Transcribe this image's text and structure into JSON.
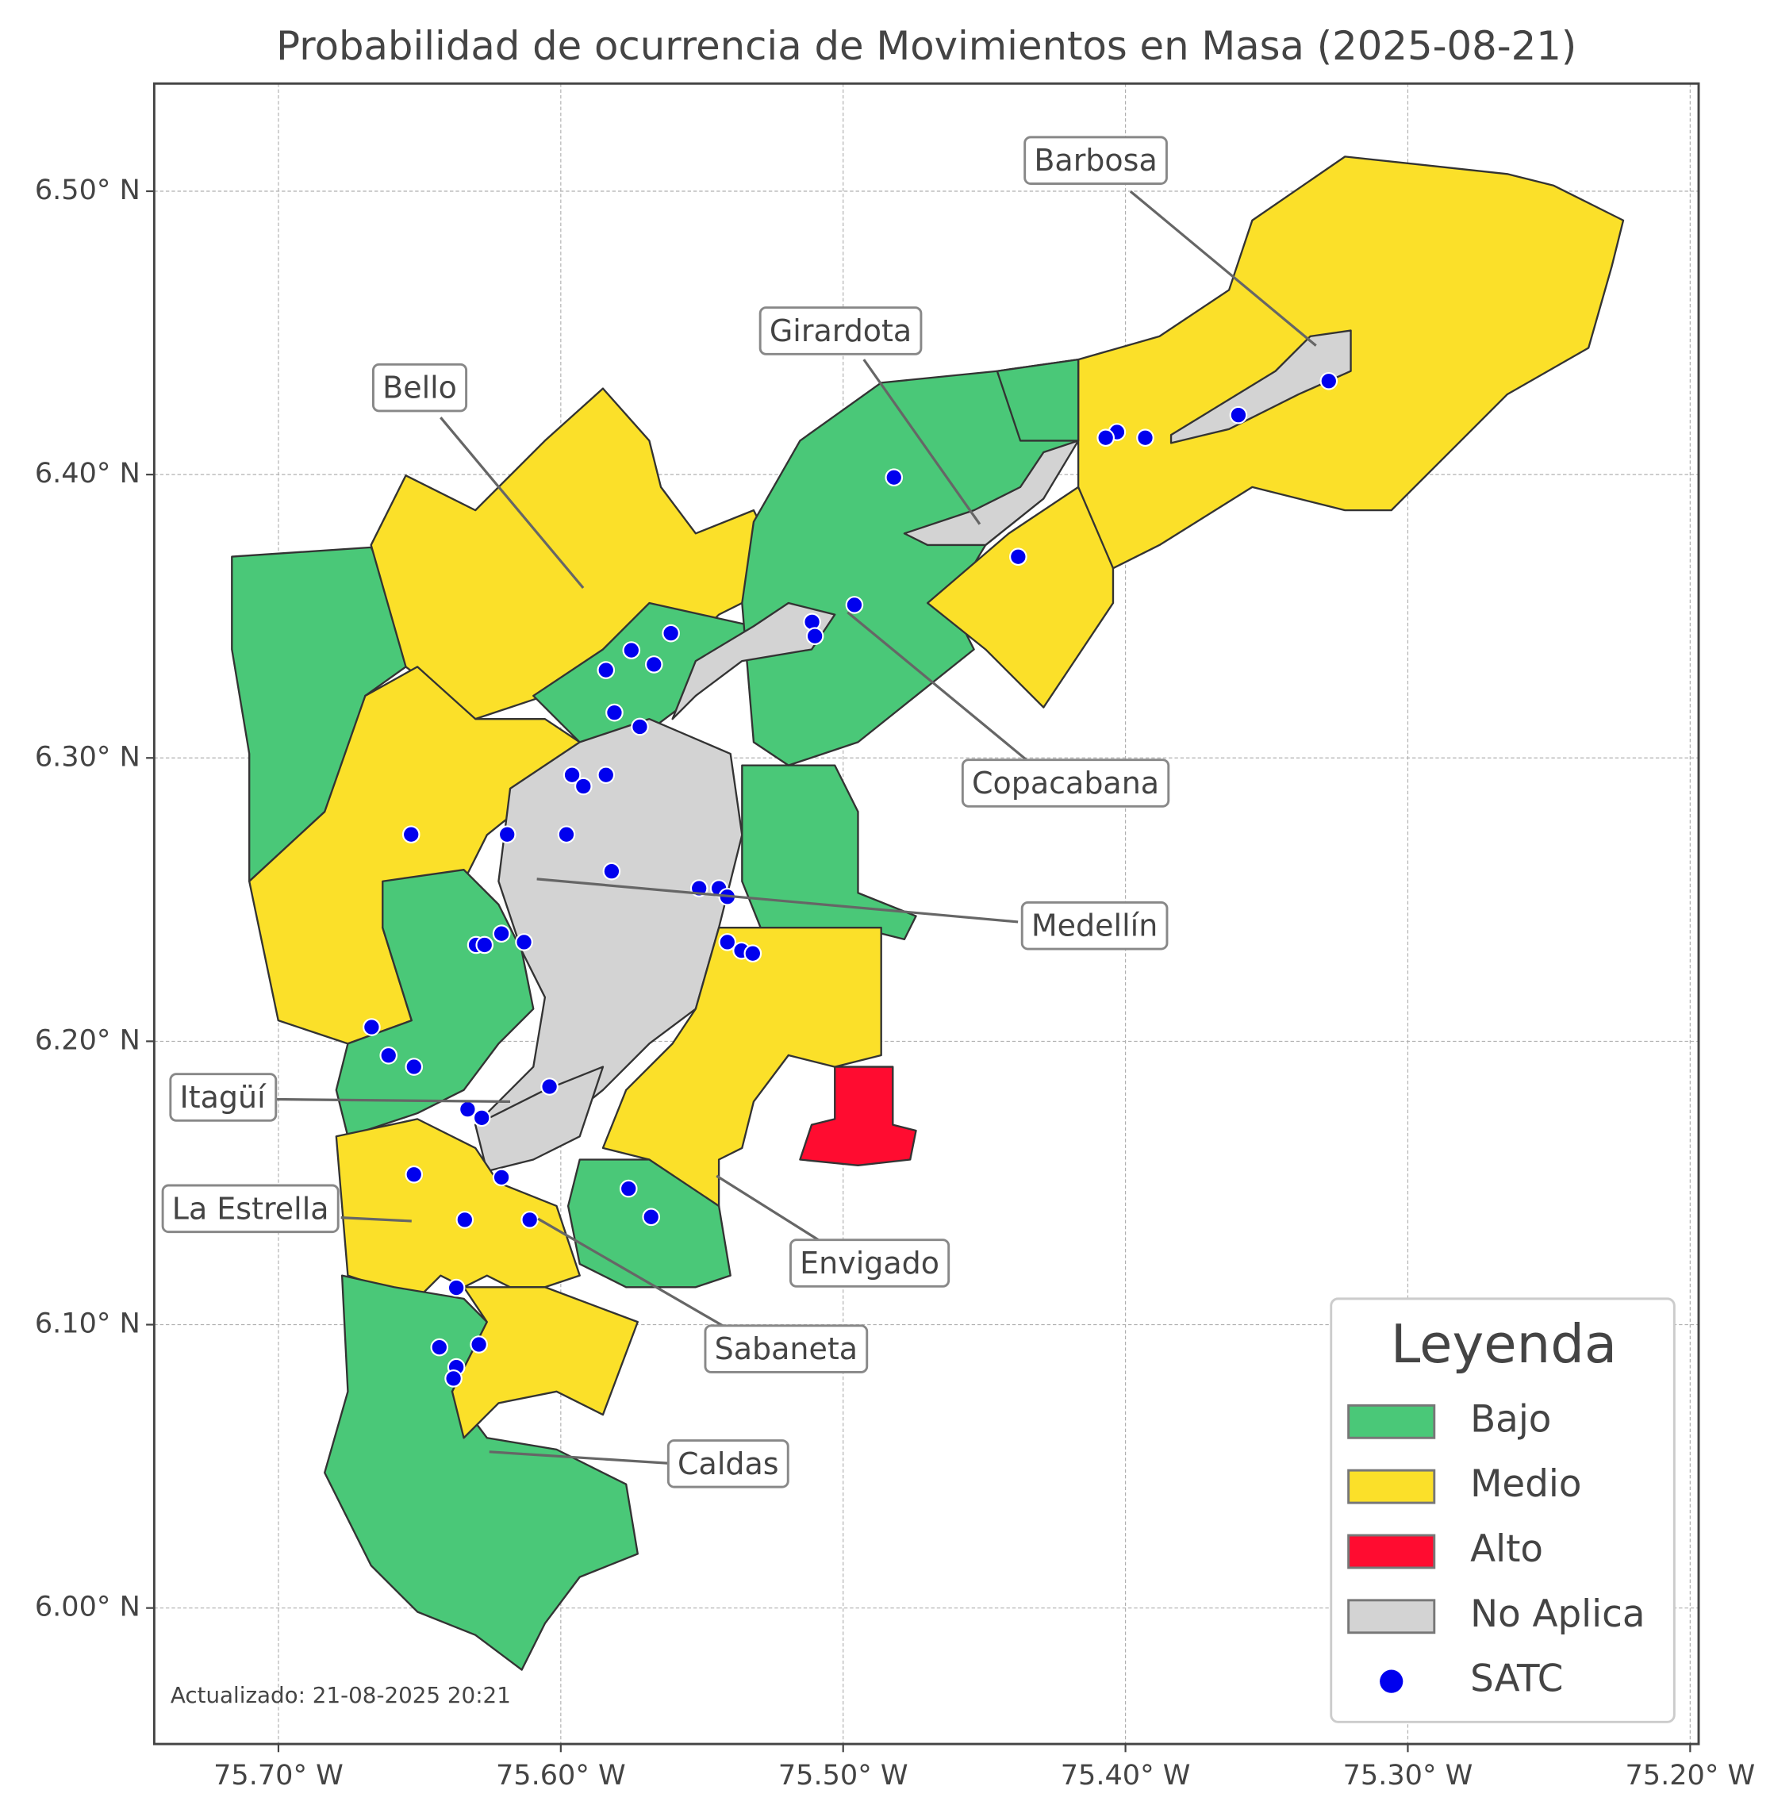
{
  "chart_data": {
    "type": "map",
    "title": "Probabilidad de ocurrencia de Movimientos en Masa (2025-08-21)",
    "xlim": [
      -75.744,
      -75.197
    ],
    "ylim": [
      5.952,
      6.538
    ],
    "xticks": [
      {
        "value": -75.7,
        "label": "75.70° W"
      },
      {
        "value": -75.6,
        "label": "75.60° W"
      },
      {
        "value": -75.5,
        "label": "75.50° W"
      },
      {
        "value": -75.4,
        "label": "75.40° W"
      },
      {
        "value": -75.3,
        "label": "75.30° W"
      },
      {
        "value": -75.2,
        "label": "75.20° W"
      }
    ],
    "yticks": [
      {
        "value": 6.0,
        "label": "6.00° N"
      },
      {
        "value": 6.1,
        "label": "6.10° N"
      },
      {
        "value": 6.2,
        "label": "6.20° N"
      },
      {
        "value": 6.3,
        "label": "6.30° N"
      },
      {
        "value": 6.4,
        "label": "6.40° N"
      },
      {
        "value": 6.5,
        "label": "6.50° N"
      }
    ],
    "grid": true,
    "annotations": [
      "Barbosa",
      "Girardota",
      "Bello",
      "Copacabana",
      "Medellín",
      "Itagüí",
      "La Estrella",
      "Envigado",
      "Sabaneta",
      "Caldas"
    ],
    "footnote": "Actualizado: 21-08-2025 20:21",
    "legend": {
      "title": "Leyenda",
      "position": "lower right",
      "entries": [
        {
          "name": "Bajo",
          "color": "#4ac878"
        },
        {
          "name": "Medio",
          "color": "#fbe029"
        },
        {
          "name": "Alto",
          "color": "#ff0c30"
        },
        {
          "name": "No Aplica",
          "color": "#d3d3d3"
        },
        {
          "name": "SATC",
          "color": "#0000ee"
        }
      ]
    },
    "points": {
      "lon": [
        -75.328,
        -75.36,
        -75.393,
        -75.403,
        -75.407,
        -75.482,
        -75.438,
        -75.496,
        -75.511,
        -75.51,
        -75.561,
        -75.575,
        -75.567,
        -75.584,
        -75.581,
        -75.572,
        -75.596,
        -75.592,
        -75.584,
        -75.653,
        -75.619,
        -75.598,
        -75.582,
        -75.551,
        -75.544,
        -75.541,
        -75.541,
        -75.536,
        -75.532,
        -75.63,
        -75.627,
        -75.621,
        -75.613,
        -75.667,
        -75.661,
        -75.652,
        -75.604,
        -75.633,
        -75.628,
        -75.652,
        -75.621,
        -75.576,
        -75.568,
        -75.634,
        -75.611,
        -75.637,
        -75.643,
        -75.629,
        -75.637,
        -75.638
      ],
      "lat": [
        6.433,
        6.421,
        6.413,
        6.415,
        6.413,
        6.399,
        6.371,
        6.354,
        6.348,
        6.343,
        6.344,
        6.338,
        6.333,
        6.331,
        6.316,
        6.311,
        6.294,
        6.29,
        6.294,
        6.273,
        6.273,
        6.273,
        6.26,
        6.254,
        6.254,
        6.251,
        6.235,
        6.232,
        6.231,
        6.234,
        6.234,
        6.238,
        6.235,
        6.205,
        6.195,
        6.191,
        6.184,
        6.176,
        6.173,
        6.153,
        6.152,
        6.148,
        6.138,
        6.137,
        6.137,
        6.113,
        6.092,
        6.093,
        6.085,
        6.081
      ]
    }
  }
}
